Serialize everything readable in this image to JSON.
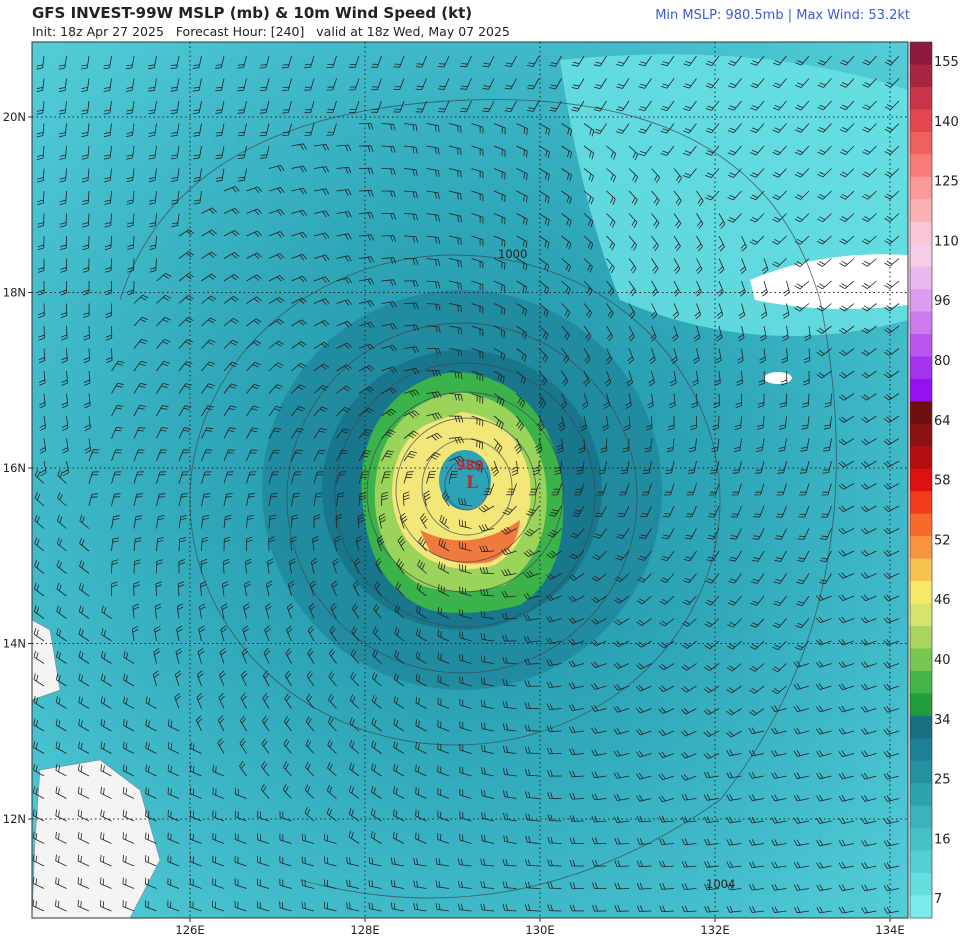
{
  "header": {
    "title": "GFS INVEST-99W MSLP (mb) & 10m Wind Speed (kt)",
    "subtitle": "Init: 18z Apr 27 2025   Forecast Hour: [240]   valid at 18z Wed, May 07 2025",
    "stats": "Min MSLP: 980.5mb | Max Wind: 53.2kt"
  },
  "map": {
    "lat_labels": [
      "20N",
      "18N",
      "16N",
      "14N",
      "12N"
    ],
    "lon_labels": [
      "126E",
      "128E",
      "130E",
      "132E",
      "134E"
    ],
    "center_pressure": "980",
    "center_marker": "L",
    "contour_labels": [
      "1000",
      "1004"
    ]
  },
  "colorbar": {
    "labels": [
      "155",
      "140",
      "125",
      "110",
      "96",
      "80",
      "64",
      "58",
      "52",
      "46",
      "40",
      "34",
      "25",
      "16",
      "7"
    ]
  }
}
